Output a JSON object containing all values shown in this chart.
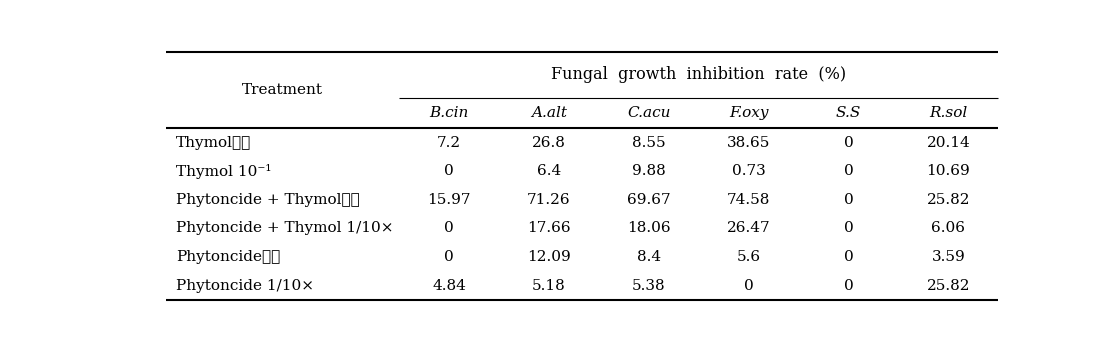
{
  "title": "Fungal  growth  inhibition  rate  (%)",
  "col_header_row1": "Treatment",
  "col_headers": [
    "B.cin",
    "A.alt",
    "C.acu",
    "F.oxy",
    "S.S",
    "R.sol"
  ],
  "row_labels": [
    "Thymol원액",
    "Thymol 10⁻¹",
    "Phytoncide + Thymol원액",
    "Phytoncide + Thymol 1/10×",
    "Phytoncide원액",
    "Phytoncide 1/10×"
  ],
  "data": [
    [
      7.2,
      26.8,
      8.55,
      38.65,
      0,
      20.14
    ],
    [
      0,
      6.4,
      9.88,
      0.73,
      0,
      10.69
    ],
    [
      15.97,
      71.26,
      69.67,
      74.58,
      0,
      25.82
    ],
    [
      0,
      17.66,
      18.06,
      26.47,
      0,
      6.06
    ],
    [
      0,
      12.09,
      8.4,
      5.6,
      0,
      3.59
    ],
    [
      4.84,
      5.18,
      5.38,
      0,
      0,
      25.82
    ]
  ],
  "bg_color": "#ffffff",
  "text_color": "#000000",
  "line_color": "#000000",
  "figsize": [
    11.19,
    3.43
  ],
  "dpi": 100
}
